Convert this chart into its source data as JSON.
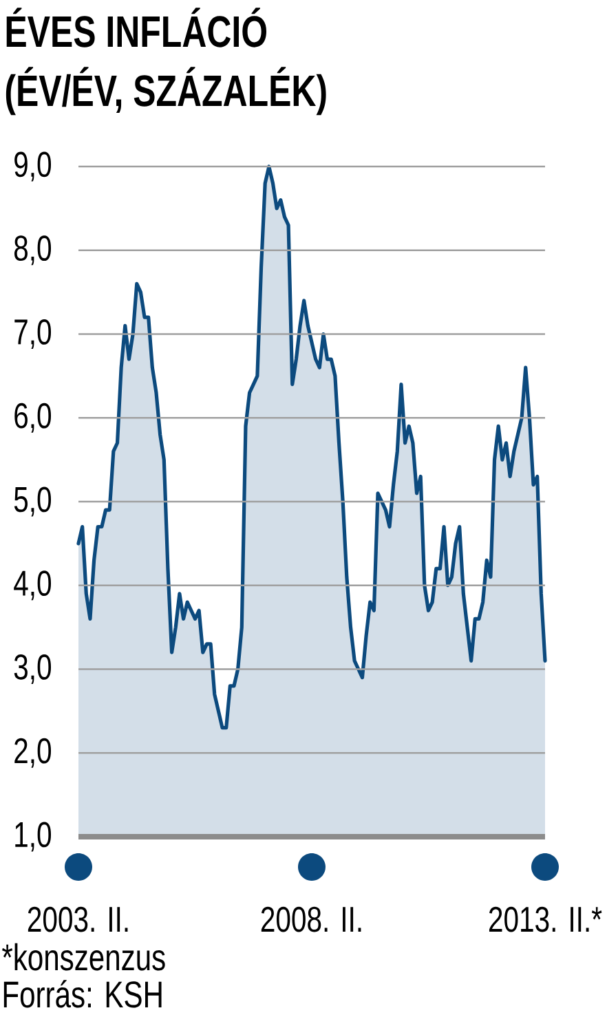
{
  "chart_data": {
    "type": "area",
    "title": "ÉVES INFLÁCIÓ",
    "subtitle": "(ÉV/ÉV, SZÁZALÉK)",
    "x": [
      "2003-02",
      "2003-03",
      "2003-04",
      "2003-05",
      "2003-06",
      "2003-07",
      "2003-08",
      "2003-09",
      "2003-10",
      "2003-11",
      "2003-12",
      "2004-01",
      "2004-02",
      "2004-03",
      "2004-04",
      "2004-05",
      "2004-06",
      "2004-07",
      "2004-08",
      "2004-09",
      "2004-10",
      "2004-11",
      "2004-12",
      "2005-01",
      "2005-02",
      "2005-03",
      "2005-04",
      "2005-05",
      "2005-06",
      "2005-07",
      "2005-08",
      "2005-09",
      "2005-10",
      "2005-11",
      "2005-12",
      "2006-01",
      "2006-02",
      "2006-03",
      "2006-04",
      "2006-05",
      "2006-06",
      "2006-07",
      "2006-08",
      "2006-09",
      "2006-10",
      "2006-11",
      "2006-12",
      "2007-01",
      "2007-02",
      "2007-03",
      "2007-04",
      "2007-05",
      "2007-06",
      "2007-07",
      "2007-08",
      "2007-09",
      "2007-10",
      "2007-11",
      "2007-12",
      "2008-01",
      "2008-02",
      "2008-03",
      "2008-04",
      "2008-05",
      "2008-06",
      "2008-07",
      "2008-08",
      "2008-09",
      "2008-10",
      "2008-11",
      "2008-12",
      "2009-01",
      "2009-02",
      "2009-03",
      "2009-04",
      "2009-05",
      "2009-06",
      "2009-07",
      "2009-08",
      "2009-09",
      "2009-10",
      "2009-11",
      "2009-12",
      "2010-01",
      "2010-02",
      "2010-03",
      "2010-04",
      "2010-05",
      "2010-06",
      "2010-07",
      "2010-08",
      "2010-09",
      "2010-10",
      "2010-11",
      "2010-12",
      "2011-01",
      "2011-02",
      "2011-03",
      "2011-04",
      "2011-05",
      "2011-06",
      "2011-07",
      "2011-08",
      "2011-09",
      "2011-10",
      "2011-11",
      "2011-12",
      "2012-01",
      "2012-02",
      "2012-03",
      "2012-04",
      "2012-05",
      "2012-06",
      "2012-07",
      "2012-08",
      "2012-09",
      "2012-10",
      "2012-11",
      "2012-12",
      "2013-01",
      "2013-02"
    ],
    "values": [
      4.5,
      4.7,
      3.9,
      3.6,
      4.3,
      4.7,
      4.7,
      4.9,
      4.9,
      5.6,
      5.7,
      6.6,
      7.1,
      6.7,
      7.0,
      7.6,
      7.5,
      7.2,
      7.2,
      6.6,
      6.3,
      5.8,
      5.5,
      4.2,
      3.2,
      3.5,
      3.9,
      3.6,
      3.8,
      3.7,
      3.6,
      3.7,
      3.2,
      3.3,
      3.3,
      2.7,
      2.5,
      2.3,
      2.3,
      2.8,
      2.8,
      3.0,
      3.5,
      5.9,
      6.3,
      6.4,
      6.5,
      7.8,
      8.8,
      9.0,
      8.8,
      8.5,
      8.6,
      8.4,
      8.3,
      6.4,
      6.7,
      7.1,
      7.4,
      7.1,
      6.9,
      6.7,
      6.6,
      7.0,
      6.7,
      6.7,
      6.5,
      5.7,
      5.0,
      4.1,
      3.5,
      3.1,
      3.0,
      2.9,
      3.4,
      3.8,
      3.7,
      5.1,
      5.0,
      4.9,
      4.7,
      5.2,
      5.6,
      6.4,
      5.7,
      5.9,
      5.7,
      5.1,
      5.3,
      4.0,
      3.7,
      3.8,
      4.2,
      4.2,
      4.7,
      4.0,
      4.1,
      4.5,
      4.7,
      3.9,
      3.5,
      3.1,
      3.6,
      3.6,
      3.8,
      4.3,
      4.1,
      5.5,
      5.9,
      5.5,
      5.7,
      5.3,
      5.6,
      5.8,
      6.0,
      6.6,
      6.0,
      5.2,
      5.3,
      3.9,
      3.1
    ],
    "color": "#0c4a7e",
    "xlim": [
      "2003-02",
      "2013-02"
    ],
    "xticks": [
      {
        "value": "2003-02",
        "label": "2003. II."
      },
      {
        "value": "2008-02",
        "label": "2008. II."
      },
      {
        "value": "2013-02",
        "label": "2013. II.*"
      }
    ],
    "ylim": [
      1,
      9
    ],
    "yticks": [
      {
        "value": 1,
        "label": "1,0"
      },
      {
        "value": 2,
        "label": "2,0"
      },
      {
        "value": 3,
        "label": "3,0"
      },
      {
        "value": 4,
        "label": "4,0"
      },
      {
        "value": 5,
        "label": "5,0"
      },
      {
        "value": 6,
        "label": "6,0"
      },
      {
        "value": 7,
        "label": "7,0"
      },
      {
        "value": 8,
        "label": "8,0"
      },
      {
        "value": 9,
        "label": "9,0"
      }
    ],
    "grid": "y",
    "annotations": [
      "*konszenzus",
      "Forrás: KSH"
    ]
  }
}
